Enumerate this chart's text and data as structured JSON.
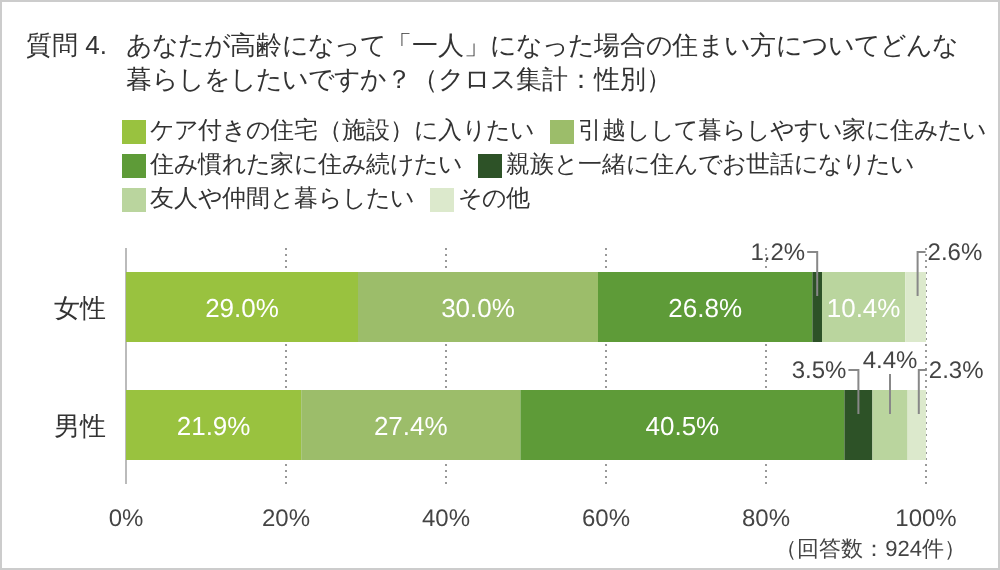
{
  "chart_data": {
    "type": "bar",
    "orientation": "horizontal",
    "stacked": true,
    "title": "質問 4.  あなたが高齢になって「一人」になった場合の住まい方についてどんな暮らしをしたいですか？（クロス集計：性別）",
    "categories": [
      "女性",
      "男性"
    ],
    "series": [
      {
        "name": "ケア付きの住宅（施設）に入りたい",
        "color": "#99c23f",
        "values": [
          29.0,
          21.9
        ],
        "value_labels": [
          "29.0%",
          "21.9%"
        ]
      },
      {
        "name": "引越しして暮らしやすい家に住みたい",
        "color": "#9cbd6a",
        "values": [
          30.0,
          27.4
        ],
        "value_labels": [
          "30.0%",
          "27.4%"
        ]
      },
      {
        "name": "住み慣れた家に住み続けたい",
        "color": "#5e9b38",
        "values": [
          26.8,
          40.5
        ],
        "value_labels": [
          "26.8%",
          "40.5%"
        ]
      },
      {
        "name": "親族と一緒に住んでお世話になりたい",
        "color": "#2d5227",
        "values": [
          1.2,
          3.5
        ],
        "value_labels": [
          "1.2%",
          "3.5%"
        ]
      },
      {
        "name": "友人や仲間と暮らしたい",
        "color": "#bad59e",
        "values": [
          10.4,
          4.4
        ],
        "value_labels": [
          "10.4%",
          "4.4%"
        ]
      },
      {
        "name": "その他",
        "color": "#dce9cc",
        "values": [
          2.6,
          2.3
        ],
        "value_labels": [
          "2.6%",
          "2.3%"
        ]
      }
    ],
    "xlim": [
      0,
      100
    ],
    "xticks": [
      {
        "value": 0,
        "label": "0%"
      },
      {
        "value": 20,
        "label": "20%"
      },
      {
        "value": 40,
        "label": "40%"
      },
      {
        "value": 60,
        "label": "60%"
      },
      {
        "value": 80,
        "label": "80%"
      },
      {
        "value": 100,
        "label": "100%"
      }
    ],
    "grid": "x",
    "legend": "top",
    "annotations": [
      "（回答数：924件）"
    ]
  }
}
